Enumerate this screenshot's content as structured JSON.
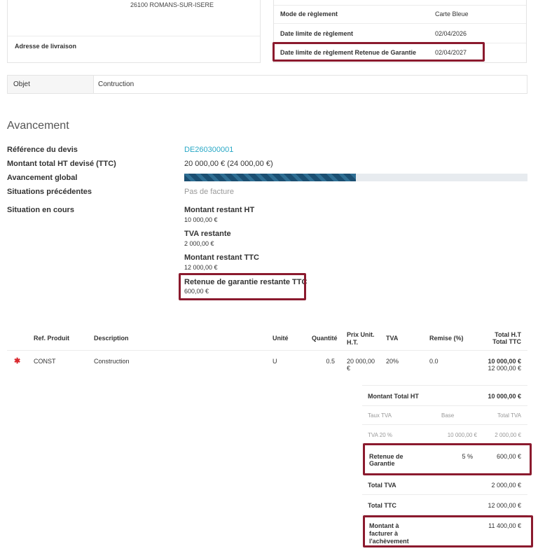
{
  "address": {
    "city_line": "26100 ROMANS-SUR-ISERE",
    "delivery_label": "Adresse de livraison"
  },
  "payment": {
    "mode_label": "Mode de règlement",
    "mode_value": "Carte Bleue",
    "deadline_label": "Date limite de règlement",
    "deadline_value": "02/04/2026",
    "retention_deadline_label": "Date limite de règlement Retenue de Garantie",
    "retention_deadline_value": "02/04/2027"
  },
  "object": {
    "label": "Objet",
    "value": "Contruction"
  },
  "progress": {
    "section_title": "Avancement",
    "ref_label": "Référence du devis",
    "ref_value": "DE260300001",
    "total_label": "Montant total HT devisé (TTC)",
    "total_value": "20 000,00 € (24 000,00 €)",
    "global_label": "Avancement global",
    "global_fraction": 0.5,
    "previous_label": "Situations précédentes",
    "previous_value": "Pas de facture",
    "current_label": "Situation en cours",
    "remaining_ht_label": "Montant restant HT",
    "remaining_ht_value": "10 000,00 €",
    "remaining_tva_label": "TVA restante",
    "remaining_tva_value": "2 000,00 €",
    "remaining_ttc_label": "Montant restant TTC",
    "remaining_ttc_value": "12 000,00 €",
    "retention_label": "Retenue de garantie restante TTC",
    "retention_value": "600,00 €"
  },
  "lines_table": {
    "headers": {
      "ref": "Ref. Produit",
      "description": "Description",
      "unit": "Unité",
      "quantity": "Quantité",
      "unit_price_1": "Prix Unit.",
      "unit_price_2": "H.T.",
      "tva": "TVA",
      "discount": "Remise (%)",
      "total_ht": "Total H.T",
      "total_ttc": "Total TTC"
    },
    "rows": [
      {
        "marker": "✱",
        "ref": "CONST",
        "description": "Construction",
        "unit": "U",
        "quantity": "0.5",
        "unit_price_1": "20 000,00",
        "unit_price_2": "€",
        "tva": "20%",
        "discount": "0.0",
        "total_ht": "10 000,00 €",
        "total_ttc": "12 000,00 €"
      }
    ]
  },
  "totals": {
    "total_ht_label": "Montant Total HT",
    "total_ht_value": "10 000,00 €",
    "tva_rate_header": "Taux TVA",
    "base_header": "Base",
    "total_tva_header": "Total TVA",
    "tva20_label": "TVA 20 %",
    "tva20_base": "10 000,00 €",
    "tva20_total": "2 000,00 €",
    "retention_label_1": "Retenue de",
    "retention_label_2": "Garantie",
    "retention_rate": "5 %",
    "retention_value": "600,00 €",
    "total_tva_label": "Total TVA",
    "total_tva_value": "2 000,00 €",
    "total_ttc_label": "Total TTC",
    "total_ttc_value": "12 000,00 €",
    "to_invoice_label_1": "Montant à",
    "to_invoice_label_2": "facturer à",
    "to_invoice_label_3": "l'achèvement",
    "to_invoice_value": "11 400,00 €"
  },
  "colors": {
    "highlight": "#8b1a2e",
    "link": "#29a8c6",
    "progress": "#1b4f72"
  }
}
